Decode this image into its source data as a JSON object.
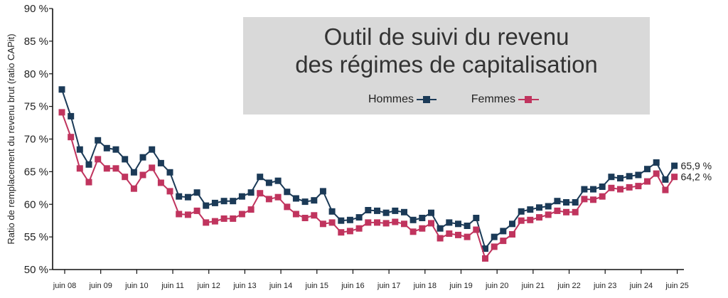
{
  "chart_data": {
    "type": "line",
    "title_lines": [
      "Outil de suivi du revenu",
      "des régimes de capitalisation"
    ],
    "ylabel": "Ratio de remplacement du revenu brut (ratio CAPit)",
    "ylim": [
      50,
      90
    ],
    "yticks": [
      50,
      55,
      60,
      65,
      70,
      75,
      80,
      85,
      90
    ],
    "ytick_labels": [
      "50 %",
      "55 %",
      "60 %",
      "65 %",
      "70 %",
      "75 %",
      "80 %",
      "85 %",
      "90 %"
    ],
    "x_tick_labels": [
      "juin 08",
      "juin 09",
      "juin 10",
      "juin 11",
      "juin 12",
      "juin 13",
      "juin 14",
      "juin 15",
      "juin 16",
      "juin 17",
      "juin 18",
      "juin 19",
      "juin 20",
      "juin 21",
      "juin 22",
      "juin 23",
      "juin 24",
      "juin 25"
    ],
    "grid": false,
    "legend_position": "top-right",
    "series": [
      {
        "name": "Hommes",
        "color": "#1b3a57",
        "end_label": "65,9 %",
        "values": [
          77.6,
          73.5,
          68.4,
          66.1,
          69.8,
          68.6,
          68.4,
          66.9,
          64.9,
          67.2,
          68.4,
          66.3,
          64.9,
          61.2,
          61.1,
          61.8,
          59.8,
          60.2,
          60.5,
          60.5,
          61.2,
          61.8,
          64.2,
          63.3,
          63.6,
          61.9,
          60.9,
          60.4,
          60.6,
          62.0,
          58.9,
          57.5,
          57.6,
          58.0,
          59.1,
          59.0,
          58.7,
          59.0,
          58.8,
          57.6,
          57.9,
          58.7,
          56.3,
          57.2,
          57.0,
          56.7,
          57.9,
          53.2,
          55.0,
          55.9,
          57.0,
          58.9,
          59.2,
          59.5,
          59.7,
          60.5,
          60.3,
          60.3,
          62.3,
          62.3,
          62.7,
          64.2,
          64.0,
          64.3,
          64.5,
          65.4,
          66.4,
          63.8,
          65.9
        ]
      },
      {
        "name": "Femmes",
        "color": "#c0345e",
        "end_label": "64,2 %",
        "values": [
          74.1,
          70.3,
          65.5,
          63.4,
          66.9,
          65.5,
          65.5,
          64.2,
          62.4,
          64.5,
          65.6,
          63.3,
          62.0,
          58.5,
          58.4,
          59.0,
          57.2,
          57.4,
          57.8,
          57.8,
          58.5,
          59.2,
          61.7,
          60.8,
          61.1,
          59.6,
          58.5,
          57.9,
          58.3,
          57.0,
          57.2,
          55.7,
          55.9,
          56.3,
          57.2,
          57.2,
          57.1,
          57.3,
          57.0,
          55.8,
          56.3,
          57.1,
          54.8,
          55.5,
          55.3,
          55.0,
          56.1,
          51.7,
          53.5,
          54.4,
          55.4,
          57.5,
          57.6,
          58.0,
          58.4,
          59.0,
          58.8,
          58.8,
          60.8,
          60.7,
          61.2,
          62.5,
          62.3,
          62.6,
          62.8,
          63.5,
          64.7,
          62.2,
          64.2
        ]
      }
    ]
  },
  "colors": {
    "title_box": "#d9d9d9",
    "axis": "#111111"
  }
}
